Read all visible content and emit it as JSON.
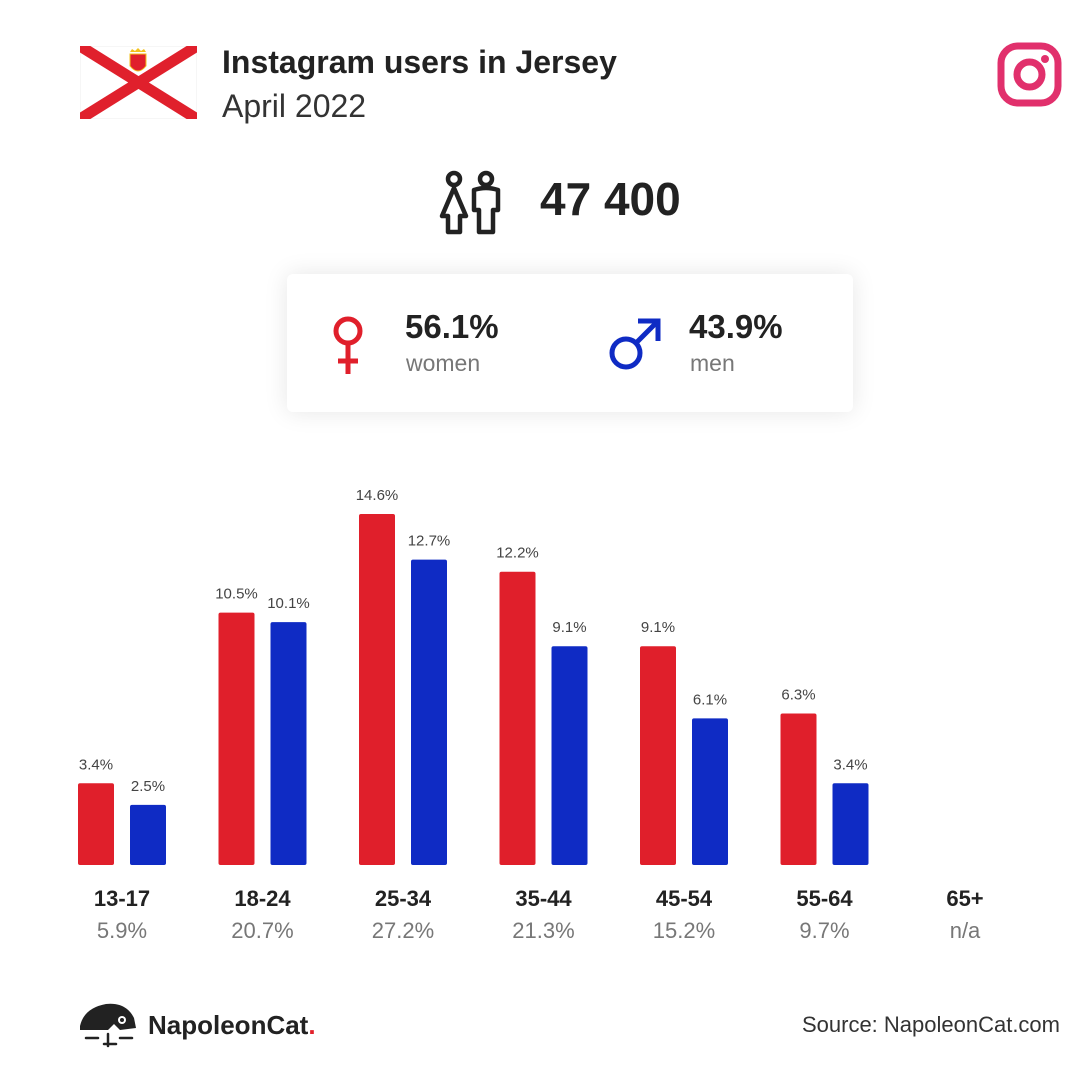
{
  "header": {
    "title": "Instagram users in Jersey",
    "subtitle": "April 2022"
  },
  "summary": {
    "total_users": "47 400",
    "women_pct": "56.1%",
    "women_label": "women",
    "men_pct": "43.9%",
    "men_label": "men"
  },
  "colors": {
    "women": "#e01f2b",
    "men": "#0f2bc4",
    "instagram": "#e1306c",
    "flag_red": "#e0202c"
  },
  "chart_data": {
    "type": "bar",
    "categories": [
      "13-17",
      "18-24",
      "25-34",
      "35-44",
      "45-54",
      "55-64",
      "65+"
    ],
    "category_totals": [
      "5.9%",
      "20.7%",
      "27.2%",
      "21.3%",
      "15.2%",
      "9.7%",
      "n/a"
    ],
    "series": [
      {
        "values": [
          3.4,
          10.5,
          14.6,
          12.2,
          9.1,
          6.3,
          null
        ],
        "labels": [
          "3.4%",
          "10.5%",
          "14.6%",
          "12.2%",
          "9.1%",
          "6.3%",
          ""
        ]
      },
      {
        "values": [
          2.5,
          10.1,
          12.7,
          9.1,
          6.1,
          3.4,
          null
        ],
        "labels": [
          "2.5%",
          "10.1%",
          "12.7%",
          "9.1%",
          "6.1%",
          "3.4%",
          ""
        ]
      }
    ],
    "ylim": [
      0,
      14.6
    ],
    "grid": false
  },
  "footer": {
    "brand_name": "NapoleonCat",
    "brand_dot": ".",
    "source": "Source: NapoleonCat.com"
  }
}
